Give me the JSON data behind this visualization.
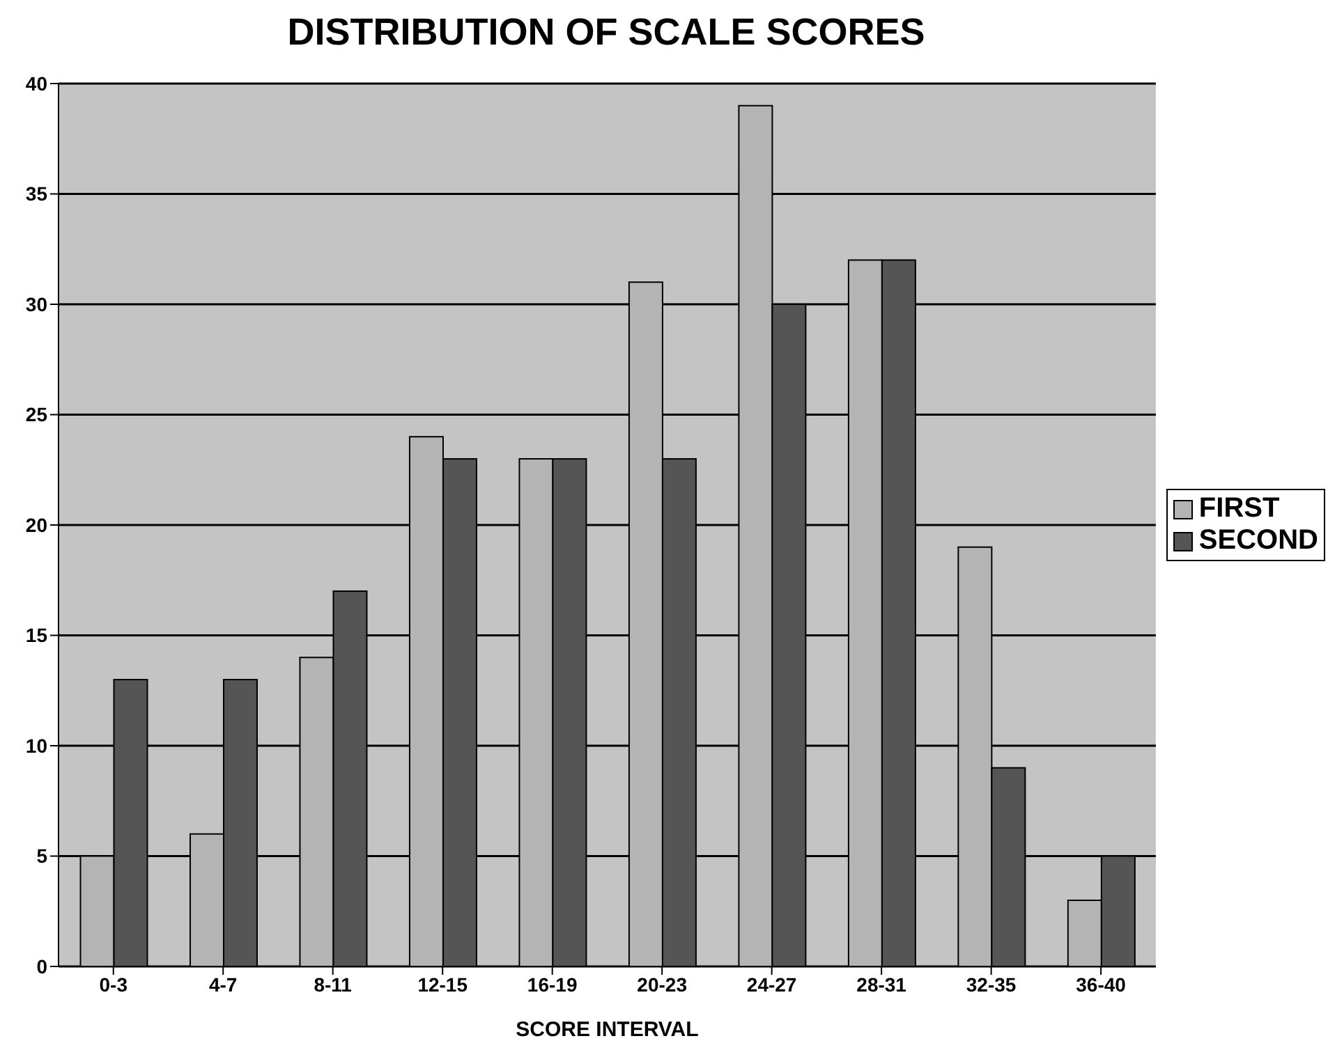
{
  "chart_data": {
    "type": "bar",
    "title": "DISTRIBUTION OF SCALE SCORES",
    "xlabel": "SCORE INTERVAL",
    "categories": [
      "0-3",
      "4-7",
      "8-11",
      "12-15",
      "16-19",
      "20-23",
      "24-27",
      "28-31",
      "32-35",
      "36-40"
    ],
    "series": [
      {
        "name": "FIRST",
        "color": "#b4b4b4",
        "values": [
          5,
          6,
          14,
          24,
          23,
          31,
          39,
          32,
          19,
          3
        ]
      },
      {
        "name": "SECOND",
        "color": "#555555",
        "values": [
          13,
          13,
          17,
          23,
          23,
          23,
          30,
          32,
          9,
          5
        ]
      }
    ],
    "ylim": [
      0,
      40
    ],
    "yticks": [
      0,
      5,
      10,
      15,
      20,
      25,
      30,
      35,
      40
    ],
    "grid": "y",
    "legend": "right"
  }
}
